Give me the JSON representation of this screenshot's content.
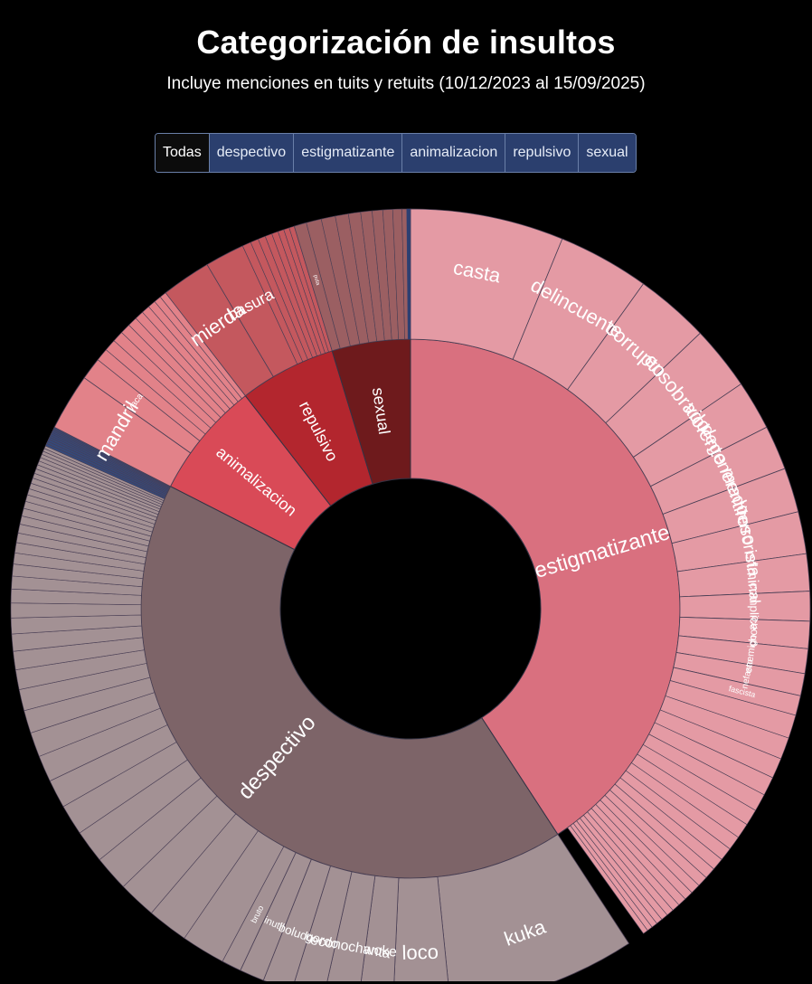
{
  "header": {
    "title": "Categorización de insultos",
    "subtitle": "Incluye menciones en tuits y retuits (10/12/2023 al 15/09/2025)"
  },
  "filters": {
    "active": "Todas",
    "items": [
      "Todas",
      "despectivo",
      "estigmatizante",
      "animalizacion",
      "repulsivo",
      "sexual"
    ]
  },
  "chart_data": {
    "type": "sunburst",
    "title": "Categorización de insultos",
    "unit": "share of mentions (%)",
    "categories": [
      {
        "name": "estigmatizante",
        "value": 40.8,
        "color": "#d9707f",
        "childColor": "#e49aa4",
        "children": [
          {
            "name": "casta",
            "value": 6.2
          },
          {
            "name": "delincuente",
            "value": 3.7
          },
          {
            "name": "corrupto",
            "value": 3.0
          },
          {
            "name": "ensobrado",
            "value": 2.6
          },
          {
            "name": "violento",
            "value": 2.0
          },
          {
            "name": "degenerado",
            "value": 1.8
          },
          {
            "name": "mentiroso",
            "value": 1.8
          },
          {
            "name": "terrorista",
            "value": 1.7
          },
          {
            "name": "criminal",
            "value": 1.5
          },
          {
            "name": "complice",
            "value": 1.2
          },
          {
            "name": "chorro",
            "value": 1.1
          },
          {
            "name": "enemigo",
            "value": 1.0
          },
          {
            "name": "nefasto",
            "value": 0.9
          },
          {
            "name": "fascista",
            "value": 0.8
          }
        ],
        "others_count": 22,
        "others_value": 10.8
      },
      {
        "name": "despectivo",
        "value": 41.7,
        "color": "#7d6468",
        "childColor": "#a39194",
        "children": [
          {
            "name": "kuka",
            "value": 7.6
          },
          {
            "name": "loco",
            "value": 2.3
          },
          {
            "name": "woke",
            "value": 1.4
          },
          {
            "name": "econochanta",
            "value": 1.4
          },
          {
            "name": "gordo",
            "value": 1.3
          },
          {
            "name": "boludo",
            "value": 1.2
          },
          {
            "name": "inutil",
            "value": 1.0
          },
          {
            "name": "bruto",
            "value": 0.8
          }
        ],
        "others_count": 50,
        "others_value": 24.7
      },
      {
        "name": "animalizacion",
        "value": 7.0,
        "color": "#d94a57",
        "childColor": "#e28289",
        "children": [
          {
            "name": "mandril",
            "value": 2.3
          },
          {
            "name": "vaca",
            "value": 0.9
          }
        ],
        "others_count": 10,
        "others_value": 3.8
      },
      {
        "name": "repulsivo",
        "value": 5.8,
        "color": "#b3262e",
        "childColor": "#c4585e",
        "children": [
          {
            "name": "mierda",
            "value": 2.0
          },
          {
            "name": "basura",
            "value": 1.6
          }
        ],
        "others_count": 8,
        "others_value": 2.2
      },
      {
        "name": "sexual",
        "value": 4.7,
        "color": "#6e1a1c",
        "childColor": "#9b5f62",
        "children": [
          {
            "name": "puta",
            "value": 0.5
          }
        ],
        "others_count": 9,
        "others_value": 4.2
      }
    ]
  }
}
